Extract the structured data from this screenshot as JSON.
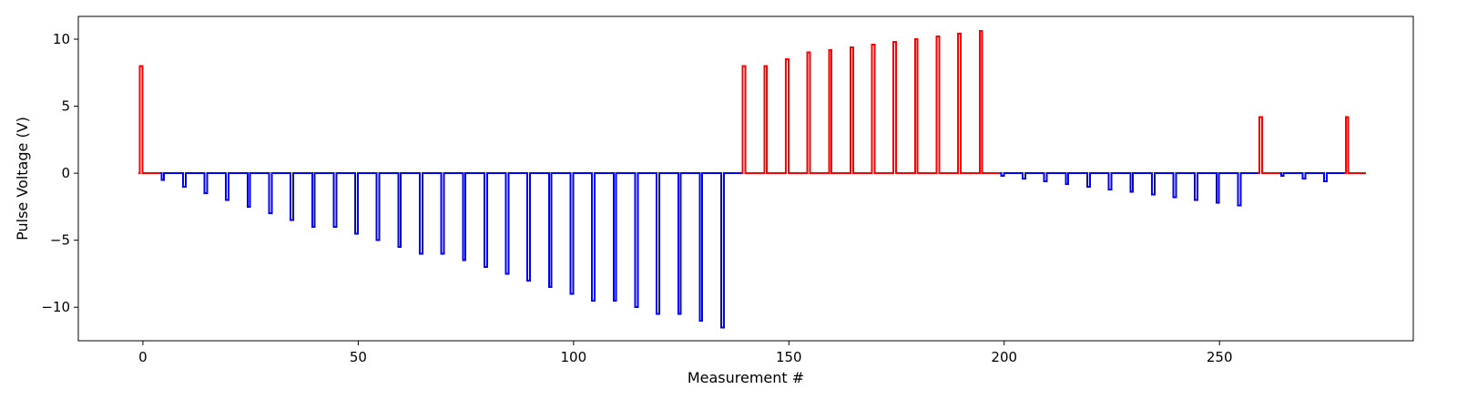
{
  "chart_data": {
    "type": "line",
    "xlabel": "Measurement #",
    "ylabel": "Pulse Voltage (V)",
    "xlim": [
      -15,
      295
    ],
    "ylim": [
      -12.5,
      11.7
    ],
    "x_ticks": [
      0,
      50,
      100,
      150,
      200,
      250
    ],
    "y_ticks": [
      -10,
      -5,
      0,
      5,
      10
    ],
    "x_tick_labels": [
      "0",
      "50",
      "100",
      "150",
      "200",
      "250"
    ],
    "y_tick_labels": [
      "−10",
      "−5",
      "0",
      "5",
      "10"
    ],
    "grid": false,
    "legend": "none",
    "series": [
      {
        "color": "#ff0000",
        "pulse_width": 0.6,
        "x": [
          -0.7
        ],
        "values": [
          8.0
        ],
        "baseline_x": [
          -1,
          4
        ]
      },
      {
        "color": "#0000ff",
        "pulse_width": 0.6,
        "x": [
          4.3,
          9.3,
          14.3,
          19.3,
          24.3,
          29.3,
          34.3,
          39.3,
          44.3,
          49.3,
          54.3,
          59.3,
          64.3,
          69.3,
          74.3,
          79.3,
          84.3,
          89.3,
          94.3,
          99.3,
          104.3,
          109.3,
          114.3,
          119.3,
          124.3,
          129.3,
          134.3
        ],
        "values": [
          -0.5,
          -1.0,
          -1.5,
          -2.0,
          -2.5,
          -3.0,
          -3.5,
          -4.0,
          -4.0,
          -4.5,
          -5.0,
          -5.5,
          -6.0,
          -6.0,
          -6.5,
          -7.0,
          -7.5,
          -8.0,
          -8.5,
          -9.0,
          -9.5,
          -9.5,
          -10.0,
          -10.5,
          -10.5,
          -11.0,
          -11.5
        ],
        "baseline_x": [
          4,
          139
        ]
      },
      {
        "color": "#ff0000",
        "pulse_width": 0.6,
        "x": [
          139.3,
          144.3,
          149.3,
          154.3,
          159.3,
          164.3,
          169.3,
          174.3,
          179.3,
          184.3,
          189.3,
          194.3
        ],
        "values": [
          8.0,
          8.0,
          8.5,
          9.0,
          9.2,
          9.4,
          9.6,
          9.8,
          10.0,
          10.2,
          10.4,
          10.6
        ],
        "baseline_x": [
          139,
          199
        ]
      },
      {
        "color": "#0000ff",
        "pulse_width": 0.6,
        "x": [
          199.3,
          204.3,
          209.3,
          214.3,
          219.3,
          224.3,
          229.3,
          234.3,
          239.3,
          244.3,
          249.3,
          254.3
        ],
        "values": [
          -0.2,
          -0.4,
          -0.6,
          -0.8,
          -1.0,
          -1.2,
          -1.4,
          -1.6,
          -1.8,
          -2.0,
          -2.2,
          -2.4
        ],
        "baseline_x": [
          199,
          259
        ]
      },
      {
        "color": "#ff0000",
        "pulse_width": 0.6,
        "x": [
          259.3
        ],
        "values": [
          4.2
        ],
        "baseline_x": [
          259,
          264
        ]
      },
      {
        "color": "#0000ff",
        "pulse_width": 0.6,
        "x": [
          264.3,
          269.3,
          274.3
        ],
        "values": [
          -0.2,
          -0.4,
          -0.6
        ],
        "baseline_x": [
          264,
          279
        ]
      },
      {
        "color": "#ff0000",
        "pulse_width": 0.6,
        "x": [
          279.3
        ],
        "values": [
          4.2
        ],
        "baseline_x": [
          279,
          284
        ]
      }
    ]
  }
}
